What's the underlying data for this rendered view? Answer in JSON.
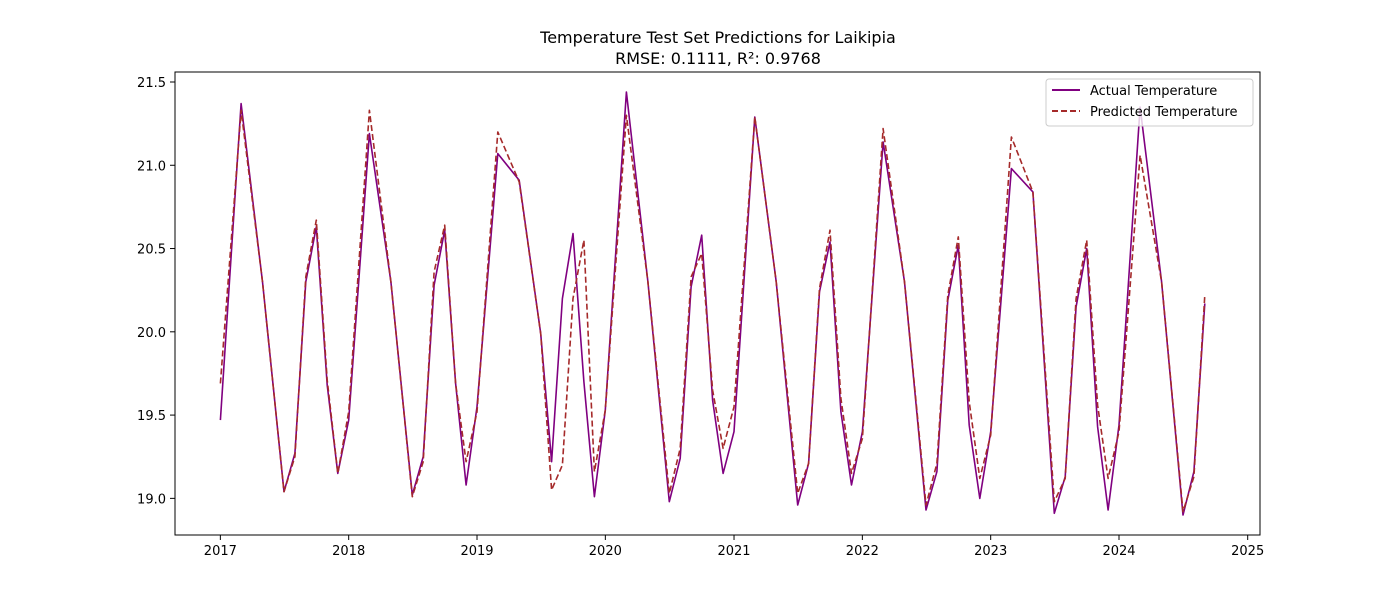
{
  "chart_data": {
    "type": "line",
    "title": "Temperature Test Set Predictions for Laikipia",
    "subtitle": "RMSE: 0.1111, R²: 0.9768",
    "xlabel": "",
    "ylabel": "",
    "x_ticks": [
      "2017",
      "2018",
      "2019",
      "2020",
      "2021",
      "2022",
      "2023",
      "2024",
      "2025"
    ],
    "y_ticks": [
      "19.0",
      "19.5",
      "20.0",
      "20.5",
      "21.0",
      "21.5"
    ],
    "xlim": [
      "2016-08-25",
      "2025-02-05"
    ],
    "ylim": [
      18.78,
      21.56
    ],
    "grid": false,
    "legend_position": "top-right",
    "x": [
      "2017-01-01",
      "2017-03-01",
      "2017-05-01",
      "2017-07-01",
      "2017-08-01",
      "2017-09-01",
      "2017-10-01",
      "2017-11-01",
      "2017-12-01",
      "2018-01-01",
      "2018-03-01",
      "2018-05-01",
      "2018-07-01",
      "2018-08-01",
      "2018-09-01",
      "2018-10-01",
      "2018-11-01",
      "2018-12-01",
      "2019-01-01",
      "2019-03-01",
      "2019-05-01",
      "2019-07-01",
      "2019-08-01",
      "2019-09-01",
      "2019-10-01",
      "2019-11-01",
      "2019-12-01",
      "2020-01-01",
      "2020-03-01",
      "2020-05-01",
      "2020-07-01",
      "2020-08-01",
      "2020-09-01",
      "2020-10-01",
      "2020-11-01",
      "2020-12-01",
      "2021-01-01",
      "2021-03-01",
      "2021-05-01",
      "2021-07-01",
      "2021-08-01",
      "2021-09-01",
      "2021-10-01",
      "2021-11-01",
      "2021-12-01",
      "2022-01-01",
      "2022-03-01",
      "2022-05-01",
      "2022-07-01",
      "2022-08-01",
      "2022-09-01",
      "2022-10-01",
      "2022-11-01",
      "2022-12-01",
      "2023-01-01",
      "2023-03-01",
      "2023-05-01",
      "2023-07-01",
      "2023-08-01",
      "2023-09-01",
      "2023-10-01",
      "2023-11-01",
      "2023-12-01",
      "2024-01-01",
      "2024-03-01",
      "2024-05-01",
      "2024-07-01",
      "2024-08-01",
      "2024-09-01"
    ],
    "series": [
      {
        "name": "Actual Temperature",
        "color": "#800080",
        "style": "solid",
        "values": [
          19.47,
          21.37,
          20.3,
          19.04,
          19.27,
          20.3,
          20.63,
          19.68,
          19.15,
          19.47,
          21.19,
          20.3,
          19.02,
          19.25,
          20.28,
          20.61,
          19.69,
          19.08,
          19.55,
          21.07,
          20.91,
          19.99,
          19.22,
          20.2,
          20.59,
          19.7,
          19.01,
          19.53,
          21.44,
          20.3,
          18.98,
          19.24,
          20.27,
          20.58,
          19.59,
          19.15,
          19.4,
          21.29,
          20.3,
          18.96,
          19.21,
          20.24,
          20.54,
          19.52,
          19.08,
          19.4,
          21.14,
          20.3,
          18.93,
          19.16,
          20.19,
          20.52,
          19.44,
          19.0,
          19.4,
          20.98,
          20.84,
          18.91,
          19.13,
          20.15,
          20.5,
          19.43,
          18.93,
          19.44,
          21.35,
          20.3,
          18.9,
          19.16,
          20.17
        ]
      },
      {
        "name": "Predicted Temperature",
        "color": "#a52a2a",
        "style": "dashed",
        "values": [
          19.69,
          21.33,
          20.3,
          19.04,
          19.25,
          20.33,
          20.67,
          19.71,
          19.15,
          19.52,
          21.33,
          20.3,
          19.01,
          19.22,
          20.36,
          20.64,
          19.69,
          19.22,
          19.52,
          21.2,
          20.9,
          19.99,
          19.05,
          19.2,
          20.2,
          20.55,
          19.16,
          19.53,
          21.3,
          20.3,
          19.03,
          19.3,
          20.33,
          20.47,
          19.65,
          19.3,
          19.55,
          21.29,
          20.3,
          19.03,
          19.21,
          20.26,
          20.61,
          19.6,
          19.15,
          19.36,
          21.22,
          20.3,
          18.96,
          19.21,
          20.22,
          20.57,
          19.58,
          19.12,
          19.38,
          21.17,
          20.84,
          18.98,
          19.12,
          20.2,
          20.55,
          19.56,
          19.12,
          19.4,
          21.06,
          20.3,
          18.92,
          19.13,
          20.22
        ]
      }
    ]
  }
}
